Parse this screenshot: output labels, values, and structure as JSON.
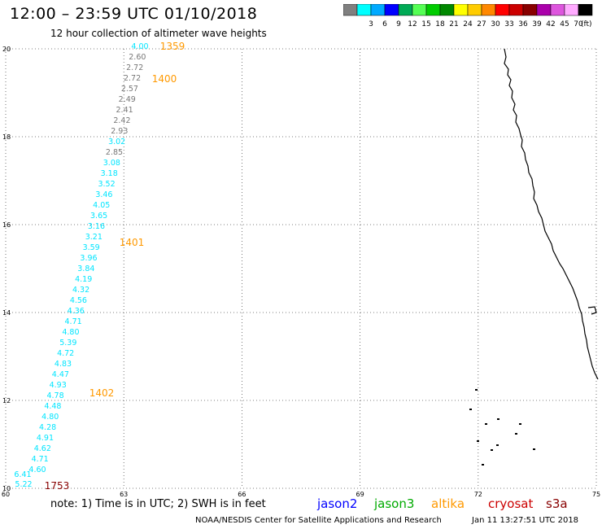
{
  "header": {
    "title": "12:00 – 23:59 UTC 01/10/2018",
    "subtitle": "12 hour collection of altimeter wave heights"
  },
  "colorbar": {
    "bins": [
      {
        "label": "",
        "color": "#808080"
      },
      {
        "label": "3",
        "color": "#00ffff"
      },
      {
        "label": "6",
        "color": "#00aaff"
      },
      {
        "label": "9",
        "color": "#0000ff"
      },
      {
        "label": "12",
        "color": "#00aa55"
      },
      {
        "label": "15",
        "color": "#55ff55"
      },
      {
        "label": "18",
        "color": "#00cc00"
      },
      {
        "label": "21",
        "color": "#008800"
      },
      {
        "label": "24",
        "color": "#ffff00"
      },
      {
        "label": "27",
        "color": "#ffcc00"
      },
      {
        "label": "30",
        "color": "#ff8800"
      },
      {
        "label": "33",
        "color": "#ff0000"
      },
      {
        "label": "36",
        "color": "#cc0000"
      },
      {
        "label": "39",
        "color": "#880000"
      },
      {
        "label": "42",
        "color": "#aa00aa"
      },
      {
        "label": "45",
        "color": "#dd55dd"
      },
      {
        "label": "70",
        "color": "#ffaaff"
      },
      {
        "label": "",
        "color": "#000000"
      }
    ],
    "unit": "(ft)"
  },
  "map": {
    "lon_ticks": [
      "60",
      "63",
      "66",
      "69",
      "72",
      "75"
    ],
    "lat_ticks": [
      "20",
      "18",
      "16",
      "14",
      "12",
      "10"
    ],
    "lon_range": [
      60,
      75
    ],
    "lat_range": [
      10,
      20
    ]
  },
  "track": [
    {
      "v": "4.00",
      "c": "#00e5ff"
    },
    {
      "v": "2.60",
      "c": "#777777"
    },
    {
      "v": "2.72",
      "c": "#777777"
    },
    {
      "v": "2.72",
      "c": "#777777"
    },
    {
      "v": "2.57",
      "c": "#777777"
    },
    {
      "v": "2.49",
      "c": "#777777"
    },
    {
      "v": "2.41",
      "c": "#777777"
    },
    {
      "v": "2.42",
      "c": "#777777"
    },
    {
      "v": "2.93",
      "c": "#777777"
    },
    {
      "v": "3.02",
      "c": "#00e5ff"
    },
    {
      "v": "2.85",
      "c": "#777777"
    },
    {
      "v": "3.08",
      "c": "#00e5ff"
    },
    {
      "v": "3.18",
      "c": "#00e5ff"
    },
    {
      "v": "3.52",
      "c": "#00e5ff"
    },
    {
      "v": "3.46",
      "c": "#00e5ff"
    },
    {
      "v": "4.05",
      "c": "#00e5ff"
    },
    {
      "v": "3.65",
      "c": "#00e5ff"
    },
    {
      "v": "3.16",
      "c": "#00e5ff"
    },
    {
      "v": "3.21",
      "c": "#00e5ff"
    },
    {
      "v": "3.59",
      "c": "#00e5ff"
    },
    {
      "v": "3.96",
      "c": "#00e5ff"
    },
    {
      "v": "3.84",
      "c": "#00e5ff"
    },
    {
      "v": "4.19",
      "c": "#00e5ff"
    },
    {
      "v": "4.32",
      "c": "#00e5ff"
    },
    {
      "v": "4.56",
      "c": "#00e5ff"
    },
    {
      "v": "4.36",
      "c": "#00e5ff"
    },
    {
      "v": "4.71",
      "c": "#00e5ff"
    },
    {
      "v": "4.80",
      "c": "#00e5ff"
    },
    {
      "v": "5.39",
      "c": "#00e5ff"
    },
    {
      "v": "4.72",
      "c": "#00e5ff"
    },
    {
      "v": "4.83",
      "c": "#00e5ff"
    },
    {
      "v": "4.47",
      "c": "#00e5ff"
    },
    {
      "v": "4.93",
      "c": "#00e5ff"
    },
    {
      "v": "4.78",
      "c": "#00e5ff"
    },
    {
      "v": "4.48",
      "c": "#00e5ff"
    },
    {
      "v": "4.80",
      "c": "#00e5ff"
    },
    {
      "v": "4.28",
      "c": "#00e5ff"
    },
    {
      "v": "4.91",
      "c": "#00e5ff"
    },
    {
      "v": "4.62",
      "c": "#00e5ff"
    },
    {
      "v": "4.71",
      "c": "#00e5ff"
    },
    {
      "v": "4.60",
      "c": "#00e5ff"
    },
    {
      "v": "6.41",
      "c": "#00e5ff"
    },
    {
      "v": "5.22",
      "c": "#00e5ff"
    }
  ],
  "time_labels": [
    {
      "t": "1359",
      "c": "#ff9900"
    },
    {
      "t": "1400",
      "c": "#ff9900"
    },
    {
      "t": "1401",
      "c": "#ff9900"
    },
    {
      "t": "1402",
      "c": "#ff9900"
    },
    {
      "t": "1753",
      "c": "#880000"
    }
  ],
  "footer": {
    "note": "note:  1) Time is in UTC;  2) SWH is in feet",
    "credit": "NOAA/NESDIS Center for Satellite Applications and Research",
    "timestamp": "Jan 11 13:27:51 UTC 2018"
  },
  "satellites": [
    {
      "name": "jason2",
      "color": "#0000ff"
    },
    {
      "name": "jason3",
      "color": "#00aa00"
    },
    {
      "name": "altika",
      "color": "#ff9900"
    },
    {
      "name": "cryosat",
      "color": "#cc0000"
    },
    {
      "name": "s3a",
      "color": "#880000"
    }
  ]
}
